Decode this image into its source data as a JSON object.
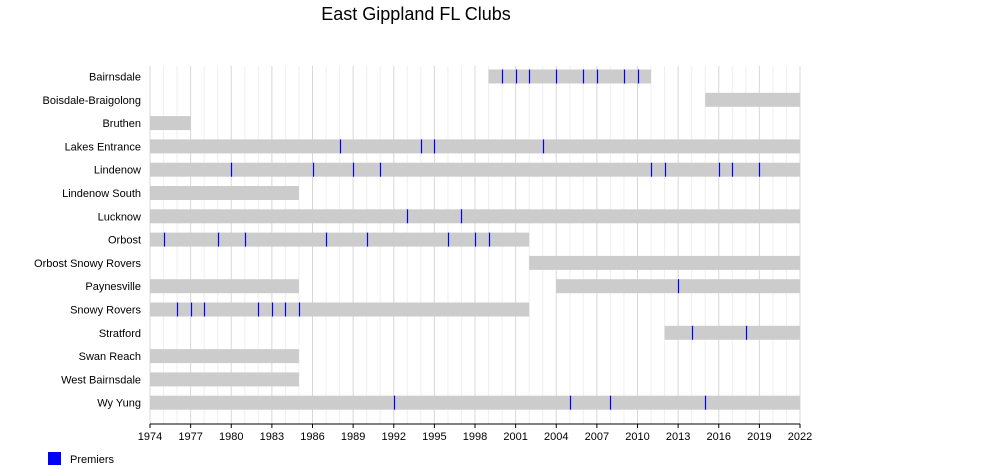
{
  "chart_data": {
    "type": "timeline",
    "title": "East Gippland FL Clubs",
    "xlim": [
      1974,
      2022
    ],
    "x_ticks": [
      "1974",
      "1977",
      "1980",
      "1983",
      "1986",
      "1989",
      "1992",
      "1995",
      "1998",
      "2001",
      "2004",
      "2007",
      "2010",
      "2013",
      "2016",
      "2019",
      "2022"
    ],
    "legend": [
      {
        "label": "Premiers",
        "color": "#0000ff"
      }
    ],
    "bar_color": "#cccccc",
    "premier_color": "#0000ff",
    "clubs": [
      {
        "name": "Bairnsdale",
        "spans": [
          [
            1999,
            2011
          ]
        ],
        "premierships": [
          2000,
          2001,
          2002,
          2004,
          2006,
          2007,
          2009,
          2010
        ]
      },
      {
        "name": "Boisdale-Braigolong",
        "spans": [
          [
            2015,
            2022
          ]
        ],
        "premierships": []
      },
      {
        "name": "Bruthen",
        "spans": [
          [
            1974,
            1977
          ]
        ],
        "premierships": []
      },
      {
        "name": "Lakes Entrance",
        "spans": [
          [
            1974,
            2022
          ]
        ],
        "premierships": [
          1988,
          1994,
          1995,
          2003
        ]
      },
      {
        "name": "Lindenow",
        "spans": [
          [
            1974,
            2022
          ]
        ],
        "premierships": [
          1980,
          1986,
          1989,
          1991,
          2011,
          2012,
          2016,
          2017,
          2019
        ]
      },
      {
        "name": "Lindenow South",
        "spans": [
          [
            1974,
            1985
          ]
        ],
        "premierships": []
      },
      {
        "name": "Lucknow",
        "spans": [
          [
            1974,
            2022
          ]
        ],
        "premierships": [
          1993,
          1997
        ]
      },
      {
        "name": "Orbost",
        "spans": [
          [
            1974,
            2002
          ]
        ],
        "premierships": [
          1975,
          1979,
          1981,
          1987,
          1990,
          1996,
          1998,
          1999
        ]
      },
      {
        "name": "Orbost Snowy Rovers",
        "spans": [
          [
            2002,
            2022
          ]
        ],
        "premierships": []
      },
      {
        "name": "Paynesville",
        "spans": [
          [
            1974,
            1985
          ],
          [
            2004,
            2022
          ]
        ],
        "premierships": [
          2013
        ]
      },
      {
        "name": "Snowy Rovers",
        "spans": [
          [
            1974,
            2002
          ]
        ],
        "premierships": [
          1976,
          1977,
          1978,
          1982,
          1983,
          1984,
          1985
        ]
      },
      {
        "name": "Stratford",
        "spans": [
          [
            2012,
            2022
          ]
        ],
        "premierships": [
          2014,
          2018
        ]
      },
      {
        "name": "Swan Reach",
        "spans": [
          [
            1974,
            1985
          ]
        ],
        "premierships": []
      },
      {
        "name": "West Bairnsdale",
        "spans": [
          [
            1974,
            1985
          ]
        ],
        "premierships": []
      },
      {
        "name": "Wy Yung",
        "spans": [
          [
            1974,
            2022
          ]
        ],
        "premierships": [
          1992,
          2005,
          2008,
          2015
        ]
      }
    ]
  }
}
